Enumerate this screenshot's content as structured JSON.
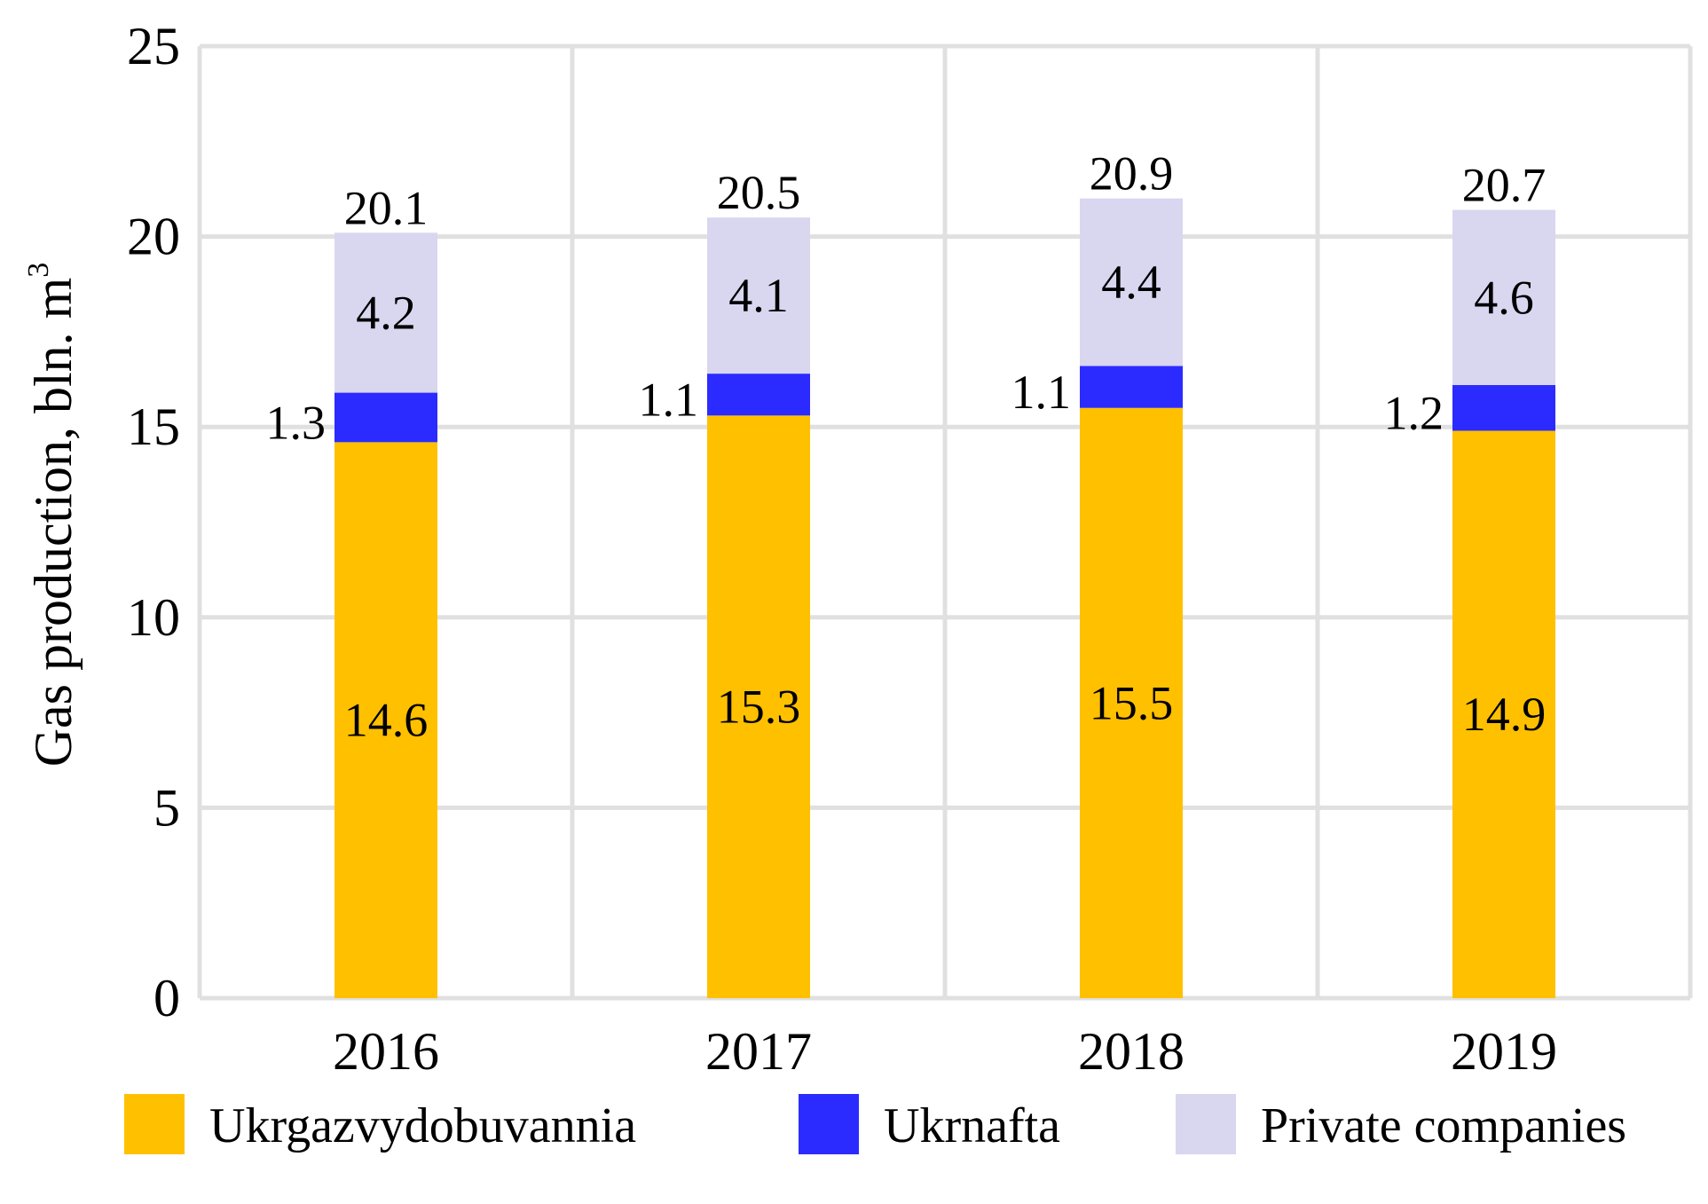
{
  "chart_data": {
    "type": "bar",
    "stacked": true,
    "title": "",
    "xlabel": "",
    "ylabel": "Gas production, bln. m",
    "ylabel_superscript": "3",
    "ylim": [
      0,
      25
    ],
    "yticks": [
      0,
      5,
      10,
      15,
      20,
      25
    ],
    "grid": true,
    "legend_position": "bottom",
    "categories": [
      "2016",
      "2017",
      "2018",
      "2019"
    ],
    "series": [
      {
        "name": "Ukrgazvydobuvannia",
        "color": "#FFC000",
        "values": [
          14.6,
          15.3,
          15.5,
          14.9
        ]
      },
      {
        "name": "Ukrnafta",
        "color": "#2B2BFF",
        "values": [
          1.3,
          1.1,
          1.1,
          1.2
        ]
      },
      {
        "name": "Private companies",
        "color": "#D9D6F0",
        "values": [
          4.2,
          4.1,
          4.4,
          4.6
        ]
      }
    ],
    "totals": [
      20.1,
      20.5,
      20.9,
      20.7
    ]
  }
}
